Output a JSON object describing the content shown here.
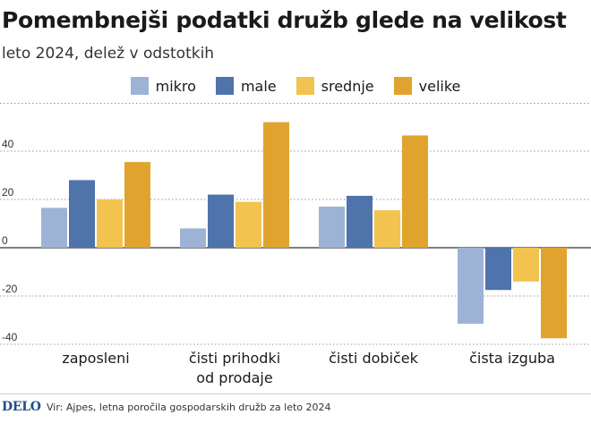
{
  "title": "Pomembnejši podatki družb glede na velikost",
  "subtitle": "leto 2024, delež v odstotkih",
  "footer": {
    "brand": "DELO",
    "source": "Vir: Ajpes, letna poročila gospodarskih družb za leto 2024"
  },
  "chart_data": {
    "type": "bar",
    "title": "Pomembnejši podatki družb glede na velikost",
    "subtitle": "leto 2024, delež v odstotkih",
    "categories": [
      "zaposleni",
      "čisti prihodki\nod prodaje",
      "čisti dobiček",
      "čista izguba"
    ],
    "series": [
      {
        "name": "mikro",
        "color": "#9db3d6",
        "values": [
          16.5,
          8,
          17,
          -31.5
        ]
      },
      {
        "name": "male",
        "color": "#4f73ab",
        "values": [
          28,
          22,
          21.5,
          -17.5
        ]
      },
      {
        "name": "srednje",
        "color": "#f2c34e",
        "values": [
          20,
          19,
          15.5,
          -14
        ]
      },
      {
        "name": "velike",
        "color": "#e0a42e",
        "values": [
          35.5,
          52,
          46.5,
          -37.5
        ]
      }
    ],
    "ylim": [
      -42,
      60
    ],
    "yticks": [
      -40,
      -20,
      0,
      20,
      40
    ],
    "ytick_labels": [
      "-40",
      "-20",
      "0",
      "20",
      "40"
    ],
    "grid": true,
    "legend_position": "top-center",
    "xlabel": "",
    "ylabel": ""
  }
}
